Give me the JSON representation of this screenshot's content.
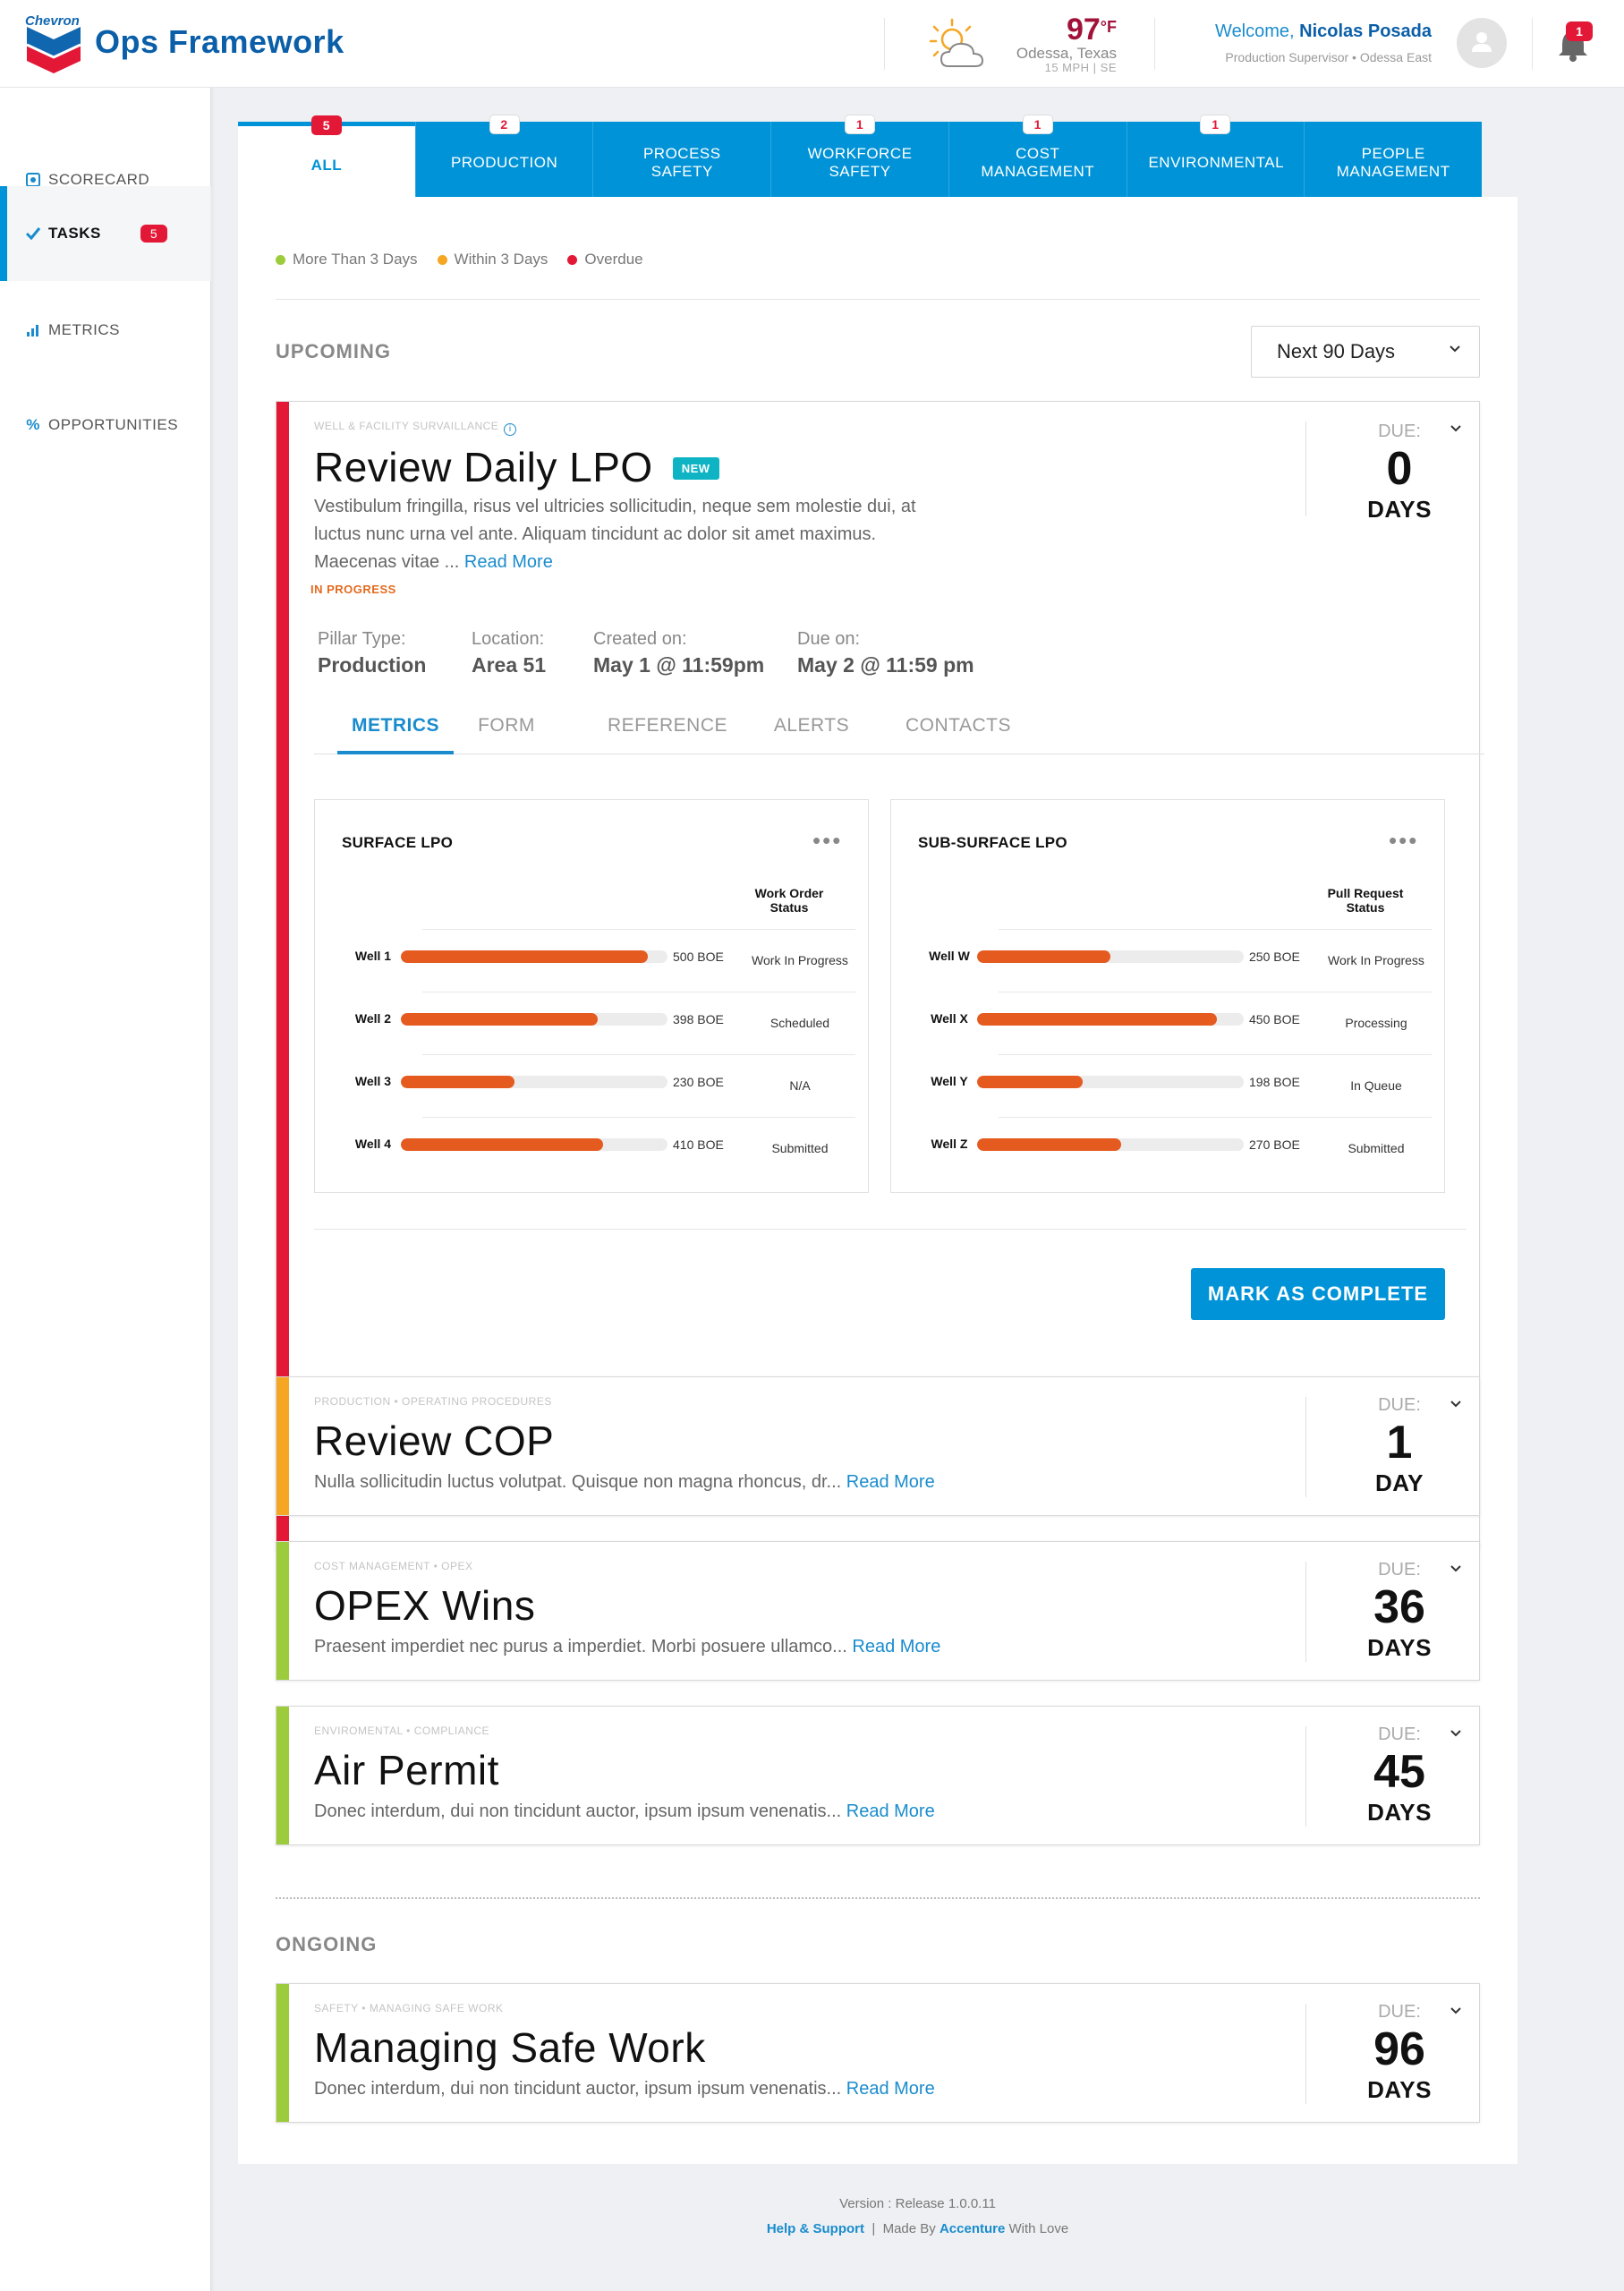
{
  "brand": {
    "logo_word": "Chevron",
    "app_title": "Ops Framework"
  },
  "weather": {
    "temp": "97",
    "unit": "°F",
    "city": "Odessa, Texas",
    "wind": "15 MPH | SE"
  },
  "user": {
    "welcome": "Welcome,",
    "name": "Nicolas Posada",
    "role": "Production Supervisor • Odessa  East"
  },
  "notifications": {
    "count": "1"
  },
  "sidebar": {
    "items": [
      {
        "label": "SCORECARD",
        "icon": "scorecard-icon"
      },
      {
        "label": "TASKS",
        "icon": "check-icon",
        "badge": "5"
      },
      {
        "label": "METRICS",
        "icon": "bar-chart-icon"
      },
      {
        "label": "OPPORTUNITIES",
        "icon": "percent-icon"
      }
    ]
  },
  "tabs": [
    {
      "label": "ALL",
      "badge": "5"
    },
    {
      "label": "PRODUCTION",
      "badge": "2"
    },
    {
      "label": "PROCESS SAFETY",
      "badge": ""
    },
    {
      "label": "WORKFORCE SAFETY",
      "badge": "1"
    },
    {
      "label": "COST MANAGEMENT",
      "badge": "1"
    },
    {
      "label": "ENVIRONMENTAL",
      "badge": "1"
    },
    {
      "label": "PEOPLE MANAGEMENT",
      "badge": ""
    }
  ],
  "legend": [
    {
      "label": "More Than 3 Days",
      "color": "#9ccb3b"
    },
    {
      "label": "Within 3 Days",
      "color": "#f5a623"
    },
    {
      "label": "Overdue",
      "color": "#e31837"
    }
  ],
  "upcoming": {
    "title": "UPCOMING",
    "range": "Next 90 Days"
  },
  "featured_task": {
    "crumb": "WELL & FACILITY SURVAILLANCE",
    "title": "Review Daily LPO",
    "badge": "NEW",
    "desc_line1": "Vestibulum fringilla, risus vel ultricies sollicitudin, neque sem molestie dui, at",
    "desc_line2": "luctus nunc urna vel ante. Aliquam tincidunt ac dolor sit amet maximus.",
    "desc_line3": "Maecenas vitae ... ",
    "read_more": "Read More",
    "status": "IN PROGRESS",
    "due_label": "DUE:",
    "due_num": "0",
    "due_unit": "DAYS",
    "color": "#e31837",
    "meta": [
      {
        "label": "Pillar Type:",
        "value": "Production"
      },
      {
        "label": "Location:",
        "value": "Area 51"
      },
      {
        "label": "Created on:",
        "value": "May 1 @ 11:59pm"
      },
      {
        "label": "Due on:",
        "value": "May 2 @ 11:59 pm"
      }
    ],
    "subtabs": [
      "METRICS",
      "FORM",
      "REFERENCE",
      "ALERTS",
      "CONTACTS"
    ],
    "complete_label": "MARK AS COMPLETE",
    "metrics": [
      {
        "title": "SURFACE LPO",
        "col_head_1": "Work Order",
        "col_head_2": "Status",
        "rows": [
          {
            "label": "Well 1",
            "value": 500,
            "value_text": "500 BOE",
            "status": "Work In Progress"
          },
          {
            "label": "Well 2",
            "value": 398,
            "value_text": "398 BOE",
            "status": "Scheduled"
          },
          {
            "label": "Well 3",
            "value": 230,
            "value_text": "230 BOE",
            "status": "N/A"
          },
          {
            "label": "Well 4",
            "value": 410,
            "value_text": "410 BOE",
            "status": "Submitted"
          }
        ],
        "max": 540
      },
      {
        "title": "SUB-SURFACE LPO",
        "col_head_1": "Pull Request",
        "col_head_2": "Status",
        "rows": [
          {
            "label": "Well W",
            "value": 250,
            "value_text": "250 BOE",
            "status": "Work In Progress"
          },
          {
            "label": "Well X",
            "value": 450,
            "value_text": "450 BOE",
            "status": "Processing"
          },
          {
            "label": "Well Y",
            "value": 198,
            "value_text": "198 BOE",
            "status": "In Queue"
          },
          {
            "label": "Well Z",
            "value": 270,
            "value_text": "270 BOE",
            "status": "Submitted"
          }
        ],
        "max": 500
      }
    ]
  },
  "tasks": [
    {
      "crumb": "PRODUCTION  •  OPERATING PROCEDURES",
      "title": "Review COP",
      "desc": "Nulla sollicitudin luctus volutpat. Quisque non magna rhoncus, dr... ",
      "read_more": "Read More",
      "due_label": "DUE:",
      "due_num": "1",
      "due_unit": "DAY",
      "color": "#f5a623"
    },
    {
      "crumb": "COST MANAGEMENT  •  OPEX",
      "title": "OPEX Wins",
      "desc": "Praesent imperdiet nec purus a imperdiet. Morbi posuere ullamco... ",
      "read_more": "Read More",
      "due_label": "DUE:",
      "due_num": "36",
      "due_unit": "DAYS",
      "color": "#9ccb3b"
    },
    {
      "crumb": "ENVIROMENTAL  •  COMPLIANCE",
      "title": "Air Permit",
      "desc": "Donec interdum, dui non tincidunt auctor, ipsum ipsum venenatis... ",
      "read_more": "Read More",
      "due_label": "DUE:",
      "due_num": "45",
      "due_unit": "DAYS",
      "color": "#9ccb3b"
    }
  ],
  "ongoing": {
    "title": "ONGOING",
    "task": {
      "crumb": "SAFETY  •  MANAGING SAFE WORK",
      "title": "Managing Safe Work",
      "desc": "Donec interdum, dui non tincidunt auctor, ipsum ipsum venenatis... ",
      "read_more": "Read More",
      "due_label": "DUE:",
      "due_num": "96",
      "due_unit": "DAYS",
      "color": "#9ccb3b"
    }
  },
  "footer": {
    "version": "Version : Release 1.0.0.11",
    "help": "Help & Support",
    "sep": "|",
    "made_by": "Made By",
    "company": "Accenture",
    "with_love": "With Love"
  }
}
